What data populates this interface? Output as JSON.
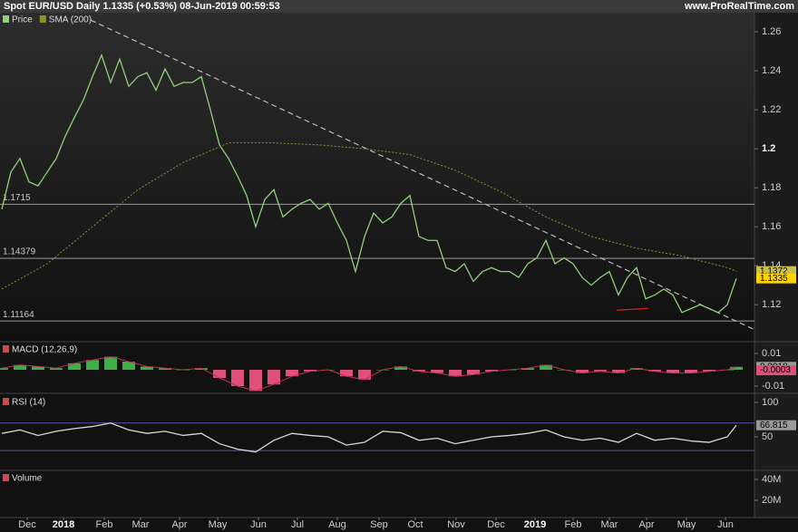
{
  "header": {
    "title": "Spot EUR/USD Daily 1.1335 (+0.53%) 08-Jun-2019 00:59:53",
    "site": "www.ProRealTime.com"
  },
  "chart_data": [
    {
      "type": "line",
      "xlim": [
        -0.2,
        83
      ],
      "ylim": [
        1.1015,
        1.2698
      ],
      "yticks": [
        1.12,
        1.14,
        1.16,
        1.18,
        1.2,
        1.22,
        1.24,
        1.26
      ],
      "series": [
        {
          "name": "Price",
          "color": "#8fd07a",
          "style": "line",
          "x": [
            0,
            1,
            2,
            3,
            4,
            5,
            6,
            7,
            8,
            9,
            10,
            11,
            12,
            13,
            14,
            15,
            16,
            17,
            18,
            19,
            20,
            21,
            22,
            23,
            24,
            25,
            26,
            27,
            28,
            29,
            30,
            31,
            32,
            33,
            34,
            35,
            36,
            37,
            38,
            39,
            40,
            41,
            42,
            43,
            44,
            45,
            46,
            47,
            48,
            49,
            50,
            51,
            52,
            53,
            54,
            55,
            56,
            57,
            58,
            59,
            60,
            61,
            62,
            63,
            64,
            65,
            66,
            67,
            68,
            69,
            70,
            71,
            72,
            73,
            74,
            75,
            76,
            77,
            78,
            79,
            80,
            81
          ],
          "values": [
            1.169,
            1.188,
            1.195,
            1.183,
            1.181,
            1.188,
            1.195,
            1.2065,
            1.216,
            1.225,
            1.237,
            1.248,
            1.234,
            1.246,
            1.232,
            1.237,
            1.239,
            1.23,
            1.241,
            1.232,
            1.234,
            1.234,
            1.237,
            1.22,
            1.202,
            1.195,
            1.186,
            1.176,
            1.16,
            1.174,
            1.179,
            1.165,
            1.169,
            1.172,
            1.174,
            1.169,
            1.172,
            1.162,
            1.153,
            1.137,
            1.155,
            1.167,
            1.162,
            1.165,
            1.172,
            1.176,
            1.155,
            1.153,
            1.153,
            1.139,
            1.137,
            1.141,
            1.132,
            1.137,
            1.139,
            1.137,
            1.137,
            1.134,
            1.141,
            1.144,
            1.153,
            1.141,
            1.144,
            1.141,
            1.134,
            1.13,
            1.134,
            1.137,
            1.125,
            1.134,
            1.139,
            1.123,
            1.125,
            1.128,
            1.125,
            1.116,
            1.118,
            1.12,
            1.118,
            1.116,
            1.12,
            1.1335
          ]
        },
        {
          "name": "SMA (200)",
          "color": "#8f8f2e",
          "style": "dotted",
          "x": [
            0,
            5,
            10,
            15,
            20,
            25,
            30,
            35,
            40,
            45,
            50,
            55,
            60,
            65,
            70,
            75,
            80,
            81
          ],
          "values": [
            1.128,
            1.141,
            1.16,
            1.179,
            1.193,
            1.203,
            1.203,
            1.202,
            1.2,
            1.197,
            1.189,
            1.178,
            1.165,
            1.155,
            1.149,
            1.145,
            1.139,
            1.1372
          ]
        }
      ],
      "trend_lines": [
        {
          "color": "#bbbbbb",
          "x": [
            9.8,
            83
          ],
          "values": [
            1.266,
            1.1072
          ]
        },
        {
          "color": "#e02020",
          "x": [
            67.8,
            71.3
          ],
          "values": [
            1.1172,
            1.1181
          ]
        }
      ],
      "levels": [
        {
          "value": 1.1715,
          "label": "1.1715"
        },
        {
          "value": 1.14379,
          "label": "1.14379"
        },
        {
          "value": 1.11164,
          "label": "1.11164"
        }
      ],
      "last_values": [
        {
          "value": 1.1372,
          "color": "#c9c04c"
        },
        {
          "value": 1.1335,
          "color": "#ffd400"
        }
      ]
    },
    {
      "type": "bar",
      "title": "MACD (12,26,9)",
      "xlim": [
        -0.2,
        83
      ],
      "ylim": [
        -0.01333,
        0.01667
      ],
      "yticks": [
        -0.01,
        0.01
      ],
      "series": [
        {
          "color": "#3fae49",
          "negative_color": "#e0507a",
          "style": "histogram",
          "x": [
            0,
            2,
            4,
            6,
            8,
            10,
            12,
            14,
            16,
            18,
            20,
            22,
            24,
            26,
            28,
            30,
            32,
            34,
            36,
            38,
            40,
            42,
            44,
            46,
            48,
            50,
            52,
            54,
            56,
            58,
            60,
            62,
            64,
            66,
            68,
            70,
            72,
            74,
            76,
            78,
            80,
            81
          ],
          "values": [
            0.001,
            0.003,
            0.002,
            0.001,
            0.004,
            0.006,
            0.008,
            0.005,
            0.002,
            0.001,
            0,
            0.001,
            -0.005,
            -0.01,
            -0.013,
            -0.009,
            -0.004,
            -0.001,
            0,
            -0.004,
            -0.006,
            0,
            0.002,
            -0.001,
            -0.002,
            -0.004,
            -0.003,
            -0.001,
            0,
            0.001,
            0.003,
            0,
            -0.002,
            -0.001,
            -0.002,
            0.001,
            -0.001,
            -0.002,
            -0.002,
            -0.001,
            0,
            0.0018
          ]
        }
      ],
      "last_values": [
        {
          "value": 0.0018,
          "color": "#9a9a9a"
        },
        {
          "value": -0.0003,
          "color": "#e0507a"
        }
      ]
    },
    {
      "type": "line",
      "title": "RSI (14)",
      "xlim": [
        -0.2,
        83
      ],
      "ylim": [
        2.6,
        110.5
      ],
      "yticks": [
        50,
        100
      ],
      "levels": [
        70,
        30
      ],
      "series": [
        {
          "color": "#d8d8d8",
          "style": "line",
          "x": [
            0,
            2,
            4,
            6,
            8,
            10,
            12,
            14,
            16,
            18,
            20,
            22,
            24,
            26,
            28,
            30,
            32,
            34,
            36,
            38,
            40,
            42,
            44,
            46,
            48,
            50,
            52,
            54,
            56,
            58,
            60,
            62,
            64,
            66,
            68,
            70,
            72,
            74,
            76,
            78,
            80,
            81
          ],
          "values": [
            55,
            60,
            52,
            58,
            62,
            65,
            70,
            60,
            55,
            58,
            52,
            55,
            40,
            32,
            28,
            45,
            55,
            52,
            50,
            38,
            42,
            58,
            56,
            45,
            48,
            40,
            45,
            50,
            52,
            55,
            60,
            50,
            45,
            48,
            42,
            55,
            45,
            48,
            44,
            42,
            50,
            66.815
          ]
        }
      ],
      "last_values": [
        {
          "value": 66.815,
          "color": "#9a9a9a"
        }
      ]
    },
    {
      "type": "bar",
      "title": "Volume",
      "xlim": [
        -0.2,
        83
      ],
      "ylim": [
        4350000,
        47830000
      ],
      "yticks": [
        {
          "value": 20000000,
          "label": "20M"
        },
        {
          "value": 40000000,
          "label": "40M"
        }
      ],
      "xticks": [
        {
          "value": 2.8,
          "label": "Dec"
        },
        {
          "value": 6.8,
          "label": "2018"
        },
        {
          "value": 11.3,
          "label": "Feb"
        },
        {
          "value": 15.3,
          "label": "Mar"
        },
        {
          "value": 19.6,
          "label": "Apr"
        },
        {
          "value": 23.8,
          "label": "May"
        },
        {
          "value": 28.3,
          "label": "Jun"
        },
        {
          "value": 32.6,
          "label": "Jul"
        },
        {
          "value": 37,
          "label": "Aug"
        },
        {
          "value": 41.6,
          "label": "Sep"
        },
        {
          "value": 45.6,
          "label": "Oct"
        },
        {
          "value": 50.1,
          "label": "Nov"
        },
        {
          "value": 54.5,
          "label": "Dec"
        },
        {
          "value": 58.8,
          "label": "2019"
        },
        {
          "value": 63,
          "label": "Feb"
        },
        {
          "value": 67,
          "label": "Mar"
        },
        {
          "value": 71.1,
          "label": "Apr"
        },
        {
          "value": 75.5,
          "label": "May"
        },
        {
          "value": 79.8,
          "label": "Jun"
        }
      ]
    }
  ]
}
